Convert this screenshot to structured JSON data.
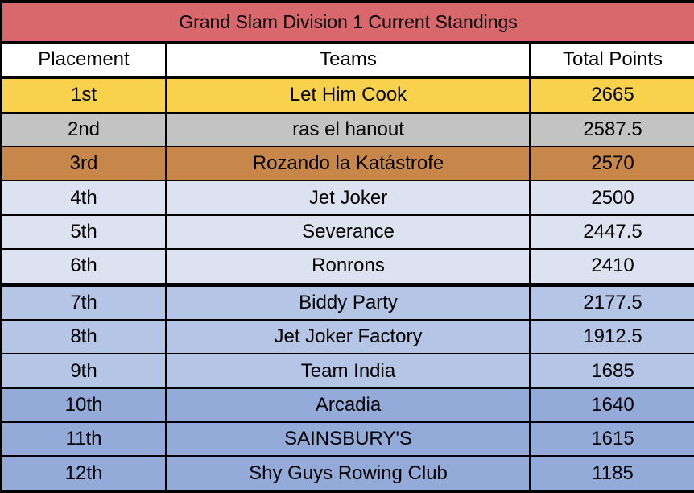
{
  "title": "Grand Slam Division 1 Current Standings",
  "headers": {
    "placement": "Placement",
    "teams": "Teams",
    "total_points": "Total Points"
  },
  "rows": [
    {
      "placement": "1st",
      "team": "Let Him Cook",
      "points": "2665"
    },
    {
      "placement": "2nd",
      "team": "ras el hanout",
      "points": "2587.5"
    },
    {
      "placement": "3rd",
      "team": "Rozando la Katástrofe",
      "points": "2570"
    },
    {
      "placement": "4th",
      "team": "Jet Joker",
      "points": "2500"
    },
    {
      "placement": "5th",
      "team": "Severance",
      "points": "2447.5"
    },
    {
      "placement": "6th",
      "team": "Ronrons",
      "points": "2410"
    },
    {
      "placement": "7th",
      "team": "Biddy Party",
      "points": "2177.5"
    },
    {
      "placement": "8th",
      "team": "Jet Joker Factory",
      "points": "1912.5"
    },
    {
      "placement": "9th",
      "team": "Team India",
      "points": "1685"
    },
    {
      "placement": "10th",
      "team": "Arcadia",
      "points": "1640"
    },
    {
      "placement": "11th",
      "team": "SAINSBURY'S",
      "points": "1615"
    },
    {
      "placement": "12th",
      "team": "Shy Guys Rowing Club",
      "points": "1185"
    }
  ],
  "colors": {
    "title_bg": "#d8686b",
    "gold": "#f8d24c",
    "silver": "#c3c3c3",
    "bronze": "#c8874a",
    "tier_light": "#dde2f0",
    "tier_mid": "#b4c5e5",
    "tier_dark": "#94aad9"
  }
}
